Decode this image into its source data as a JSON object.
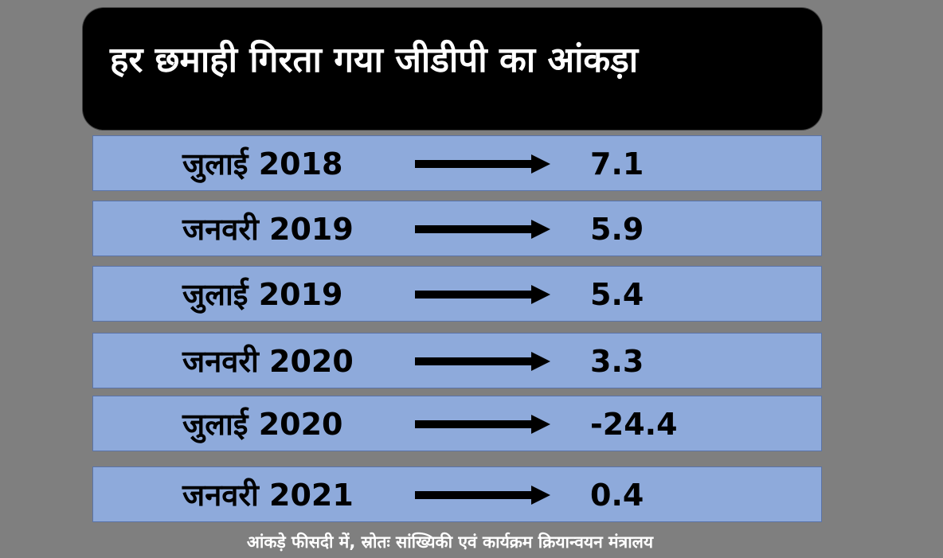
{
  "title": "हर छमाही गिरता गया जीडीपी का आंकड़ा",
  "footnote": "आंकड़े फीसदी में, स्रोतः सांख्यिकी एवं कार्यक्रम क्रियान्वयन मंत्रालय",
  "colors": {
    "background": "#7f7f7f",
    "title_box": "#000000",
    "title_text": "#ffffff",
    "row_fill": "#8eaadb",
    "row_border": "#5a73a8",
    "text": "#000000",
    "arrow": "#000000"
  },
  "chart_data": {
    "type": "table",
    "title": "हर छमाही गिरता गया जीडीपी का आंकड़ा",
    "columns": [
      "period",
      "value"
    ],
    "rows": [
      {
        "period": "जुलाई 2018",
        "value": "7.1"
      },
      {
        "period": "जनवरी 2019",
        "value": "5.9"
      },
      {
        "period": "जुलाई 2019",
        "value": "5.4"
      },
      {
        "period": "जनवरी 2020",
        "value": "3.3"
      },
      {
        "period": "जुलाई 2020",
        "value": "-24.4"
      },
      {
        "period": "जनवरी 2021",
        "value": "0.4"
      }
    ],
    "annotation": "आंकड़े फीसदी में, स्रोतः सांख्यिकी एवं कार्यक्रम क्रियान्वयन मंत्रालय"
  }
}
